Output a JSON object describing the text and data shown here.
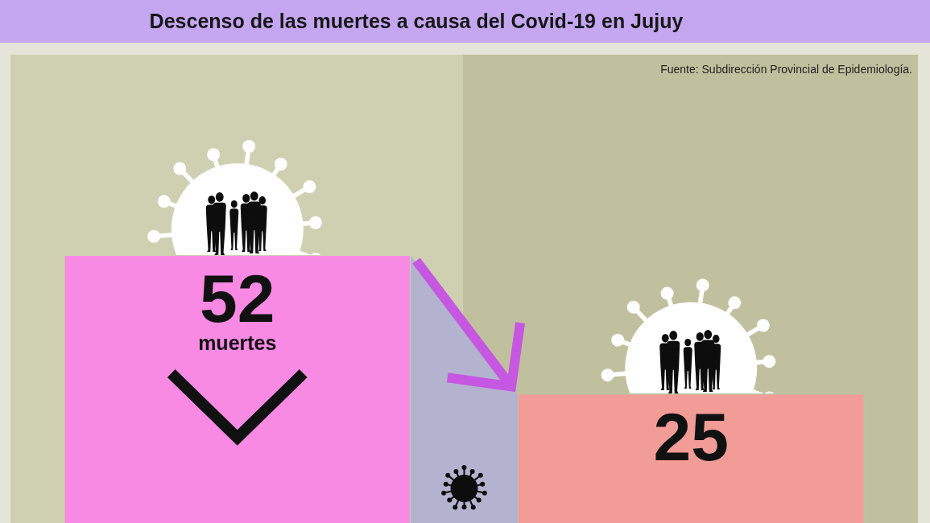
{
  "chart_data": {
    "type": "bar",
    "title": "Descenso de las muertes a causa del Covid-19 en Jujuy",
    "categories": [
      null,
      null
    ],
    "values": [
      52,
      25
    ],
    "colors": [
      "#f88ae4",
      "#f29c98"
    ],
    "value_labels": [
      "52 muertes",
      "25"
    ],
    "annotations": [
      "Fuente: Subdirección Provincial de Epidemiología."
    ]
  }
}
